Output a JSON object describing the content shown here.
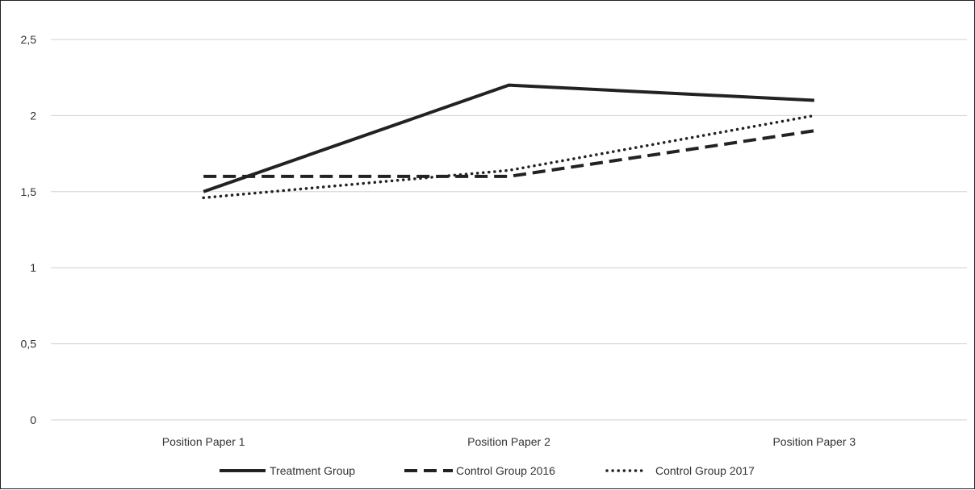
{
  "chart_data": {
    "type": "line",
    "categories": [
      "Position Paper 1",
      "Position Paper 2",
      "Position Paper 3"
    ],
    "y_ticks": [
      "0",
      "0,5",
      "1",
      "1,5",
      "2",
      "2,5"
    ],
    "ylim": [
      0,
      2.5
    ],
    "grid": true,
    "legend_position": "bottom",
    "series": [
      {
        "name": "Treatment Group",
        "values": [
          1.5,
          2.2,
          2.1
        ],
        "style": "solid",
        "color": "#222222"
      },
      {
        "name": "Control Group 2016",
        "values": [
          1.6,
          1.6,
          1.9
        ],
        "style": "dashed",
        "color": "#222222"
      },
      {
        "name": "Control Group 2017",
        "values": [
          1.46,
          1.64,
          2.0
        ],
        "style": "dotted",
        "color": "#222222"
      }
    ]
  }
}
